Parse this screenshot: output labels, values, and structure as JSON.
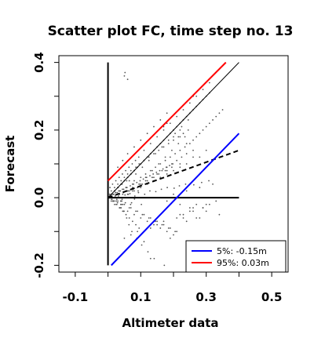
{
  "chart_data": {
    "type": "scatter",
    "title": "Scatter plot FC, time step no. 13",
    "xlabel": "Altimeter data",
    "ylabel": "Forecast",
    "xlim": [
      -0.15,
      0.55
    ],
    "ylim": [
      -0.22,
      0.42
    ],
    "x_ticks": [
      -0.1,
      0.1,
      0.3,
      0.5
    ],
    "x_tick_labels": [
      "-0.1",
      "0.1",
      "0.3",
      "0.5"
    ],
    "x_minor_ticks": [
      0.0,
      0.2,
      0.4
    ],
    "y_ticks": [
      -0.2,
      0.0,
      0.2,
      0.4
    ],
    "y_tick_labels": [
      "-0.2",
      "0.0",
      "0.2",
      "0.4"
    ],
    "y_minor_ticks": [
      -0.1,
      0.1,
      0.3
    ],
    "grid": false,
    "legend_position": "bottom-right",
    "legend": [
      {
        "label": "5%: -0.15m",
        "color": "#0000ff"
      },
      {
        "label": "95%:  0.03m",
        "color": "#ff0000"
      }
    ],
    "lines": [
      {
        "role": "x-axis",
        "x": [
          0.0,
          0.4
        ],
        "y": [
          0.0,
          0.0
        ],
        "color": "#000000",
        "style": "solid",
        "width": 2
      },
      {
        "role": "y-axis",
        "x": [
          0.0,
          0.0
        ],
        "y": [
          -0.2,
          0.4
        ],
        "color": "#000000",
        "style": "solid",
        "width": 2
      },
      {
        "role": "identity",
        "x": [
          0.0,
          0.4
        ],
        "y": [
          0.0,
          0.4
        ],
        "color": "#000000",
        "style": "solid",
        "width": 1
      },
      {
        "role": "regression",
        "x": [
          0.0,
          0.4
        ],
        "y": [
          0.0,
          0.14
        ],
        "color": "#000000",
        "style": "dashed",
        "width": 2
      },
      {
        "role": "quantile-5",
        "x": [
          0.01,
          0.4
        ],
        "y": [
          -0.2,
          0.19
        ],
        "color": "#0000ff",
        "style": "solid",
        "width": 2
      },
      {
        "role": "quantile-95",
        "x": [
          0.0,
          0.36
        ],
        "y": [
          0.05,
          0.4
        ],
        "color": "#ff0000",
        "style": "solid",
        "width": 2
      }
    ],
    "point_color": "#555555",
    "points": {
      "x": [
        0.005,
        0.01,
        0.015,
        0.02,
        0.025,
        0.03,
        0.035,
        0.04,
        0.045,
        0.05,
        0.055,
        0.06,
        0.065,
        0.07,
        0.075,
        0.08,
        0.085,
        0.09,
        0.095,
        0.1,
        0.105,
        0.11,
        0.115,
        0.12,
        0.125,
        0.13,
        0.135,
        0.14,
        0.145,
        0.15,
        0.155,
        0.16,
        0.165,
        0.17,
        0.175,
        0.18,
        0.185,
        0.19,
        0.195,
        0.2,
        0.205,
        0.21,
        0.215,
        0.22,
        0.225,
        0.23,
        0.235,
        0.24,
        0.245,
        0.25,
        0.26,
        0.27,
        0.28,
        0.29,
        0.3,
        0.31,
        0.32,
        0.33,
        0.34,
        0.35,
        0.01,
        0.02,
        0.03,
        0.04,
        0.05,
        0.06,
        0.07,
        0.08,
        0.09,
        0.1,
        0.11,
        0.12,
        0.13,
        0.14,
        0.15,
        0.16,
        0.17,
        0.18,
        0.19,
        0.2,
        0.21,
        0.22,
        0.23,
        0.24,
        0.25,
        0.26,
        0.27,
        0.28,
        0.29,
        0.3,
        0.008,
        0.018,
        0.028,
        0.038,
        0.048,
        0.058,
        0.068,
        0.078,
        0.088,
        0.098,
        0.108,
        0.118,
        0.128,
        0.138,
        0.148,
        0.158,
        0.168,
        0.178,
        0.188,
        0.198,
        0.012,
        0.022,
        0.032,
        0.042,
        0.052,
        0.062,
        0.072,
        0.082,
        0.092,
        0.102,
        0.006,
        0.014,
        0.024,
        0.034,
        0.044,
        0.054,
        0.064,
        0.074,
        0.084,
        0.094,
        0.03,
        0.045,
        0.06,
        0.08,
        0.1,
        0.12,
        0.14,
        0.16,
        0.18,
        0.2,
        0.22,
        0.24,
        0.26,
        0.28,
        0.05,
        0.07,
        0.09,
        0.11,
        0.13,
        0.15,
        0.17,
        0.19,
        0.21,
        0.23,
        0.25,
        0.27,
        0.29,
        0.31,
        0.33,
        0.04,
        0.06,
        0.08,
        0.1,
        0.12,
        0.14,
        0.16,
        0.18,
        0.2,
        0.22,
        0.24,
        0.06,
        0.1,
        0.14,
        0.18,
        0.22,
        0.26,
        0.3,
        0.015,
        0.025,
        0.035,
        0.045,
        0.055,
        0.065,
        0.075,
        0.085,
        0.095,
        0.105,
        0.115,
        0.125,
        0.135,
        0.145,
        0.155,
        0.165,
        0.175,
        0.185,
        0.195,
        0.205,
        0.005,
        0.01,
        0.015,
        0.02,
        0.025,
        0.03,
        0.035,
        0.04,
        0.045,
        0.05,
        0.055,
        0.06,
        0.065,
        0.07,
        0.075,
        0.08,
        0.085,
        0.09,
        0.095,
        0.1,
        0.055,
        0.065,
        0.075,
        0.085,
        0.095,
        0.105,
        0.115,
        0.125,
        0.135,
        0.145,
        0.155,
        0.165,
        0.175,
        0.185,
        0.195,
        0.205,
        0.215,
        0.225,
        0.235,
        0.245,
        0.035,
        0.043,
        0.052,
        0.067,
        0.081,
        0.093,
        0.112,
        0.128,
        0.146,
        0.163,
        0.181,
        0.202,
        0.218,
        0.237,
        0.262,
        0.286,
        0.308,
        0.041,
        0.048,
        0.057,
        0.064,
        0.073,
        0.088,
        0.103,
        0.122,
        0.141,
        0.172,
        0.016,
        0.022,
        0.027,
        0.033,
        0.039,
        0.047,
        0.053,
        0.061,
        0.069,
        0.077,
        0.009,
        0.013,
        0.017,
        0.021,
        0.027,
        0.031,
        0.037,
        0.043,
        0.049,
        0.057,
        0.003,
        0.007,
        0.011,
        0.016,
        0.019,
        0.023,
        0.029,
        0.033,
        0.039,
        0.044,
        0.11,
        0.13,
        0.15,
        0.17,
        0.19,
        0.21,
        0.23,
        0.25,
        0.27,
        0.29,
        0.31,
        0.16,
        0.18,
        0.2,
        0.22,
        0.24,
        0.26,
        0.28,
        0.3,
        0.32,
        0.34,
        0.02,
        0.03,
        0.04,
        0.05,
        0.06,
        0.07,
        0.08,
        0.09,
        0.1,
        0.11,
        0.12,
        0.13,
        0.14,
        0.15,
        0.16,
        0.17,
        0.18,
        0.19,
        0.2,
        0.21,
        0.22,
        0.23,
        0.24,
        0.25,
        0.26,
        0.27,
        0.28,
        0.29,
        0.3,
        0.31,
        0.05,
        0.052,
        0.06,
        0.2,
        0.22,
        0.26,
        0.18,
        0.17,
        0.13,
        0.24
      ],
      "y": [
        0.01,
        0.02,
        -0.01,
        0.03,
        0.0,
        0.04,
        0.02,
        0.05,
        0.01,
        0.06,
        0.03,
        0.07,
        0.02,
        0.08,
        0.04,
        0.05,
        0.09,
        0.03,
        0.1,
        0.06,
        0.04,
        0.11,
        0.07,
        0.05,
        0.12,
        0.08,
        0.06,
        0.13,
        0.09,
        0.07,
        0.14,
        0.1,
        0.08,
        0.15,
        0.11,
        0.09,
        0.16,
        0.12,
        0.1,
        0.17,
        0.13,
        0.11,
        0.18,
        0.14,
        0.12,
        0.19,
        0.15,
        0.13,
        0.2,
        0.16,
        0.17,
        0.18,
        0.19,
        0.2,
        0.21,
        0.22,
        0.23,
        0.24,
        0.25,
        0.26,
        -0.01,
        -0.02,
        -0.01,
        -0.03,
        -0.02,
        -0.04,
        -0.03,
        -0.05,
        -0.04,
        -0.06,
        -0.05,
        -0.07,
        -0.06,
        -0.08,
        -0.07,
        -0.09,
        -0.08,
        -0.1,
        -0.09,
        -0.11,
        -0.1,
        -0.05,
        -0.06,
        -0.07,
        -0.03,
        -0.04,
        -0.02,
        -0.06,
        -0.03,
        -0.02,
        0.005,
        0.01,
        0.015,
        0.02,
        0.025,
        0.03,
        0.035,
        0.04,
        0.045,
        0.05,
        0.055,
        0.06,
        0.065,
        0.07,
        0.075,
        0.08,
        0.085,
        0.09,
        0.095,
        0.1,
        -0.005,
        0.0,
        0.005,
        -0.01,
        0.0,
        0.01,
        -0.015,
        0.005,
        0.02,
        -0.02,
        0.03,
        0.04,
        0.05,
        0.06,
        0.07,
        0.08,
        0.09,
        0.1,
        0.11,
        0.12,
        0.09,
        0.11,
        0.13,
        0.15,
        0.17,
        0.19,
        0.21,
        0.23,
        0.25,
        0.2,
        0.18,
        0.16,
        0.14,
        0.12,
        -0.12,
        -0.11,
        -0.1,
        -0.13,
        -0.09,
        -0.08,
        -0.07,
        -0.12,
        -0.06,
        -0.05,
        -0.04,
        -0.06,
        -0.03,
        -0.02,
        -0.01,
        0.0,
        0.01,
        0.02,
        0.03,
        0.04,
        0.05,
        0.06,
        0.07,
        0.08,
        0.09,
        0.1,
        0.02,
        0.04,
        0.06,
        0.08,
        0.1,
        0.12,
        0.14,
        0.0,
        -0.01,
        0.01,
        -0.02,
        0.02,
        -0.03,
        0.03,
        -0.04,
        0.04,
        -0.05,
        0.05,
        -0.06,
        0.06,
        -0.07,
        0.07,
        -0.08,
        0.08,
        -0.09,
        0.09,
        -0.1,
        0.0,
        0.01,
        -0.01,
        0.02,
        -0.02,
        0.03,
        -0.03,
        0.04,
        -0.04,
        0.05,
        -0.05,
        0.06,
        -0.06,
        0.07,
        -0.07,
        0.08,
        -0.08,
        0.09,
        -0.09,
        0.1,
        0.03,
        0.05,
        0.02,
        0.07,
        0.04,
        0.09,
        0.06,
        0.11,
        0.08,
        0.13,
        0.1,
        0.15,
        0.12,
        0.17,
        0.14,
        0.19,
        0.16,
        0.21,
        0.18,
        0.23,
        0.0,
        -0.005,
        0.008,
        0.012,
        -0.004,
        0.015,
        0.01,
        0.02,
        0.018,
        0.025,
        0.03,
        0.028,
        0.035,
        0.04,
        0.038,
        0.045,
        0.05,
        -0.02,
        -0.04,
        -0.06,
        -0.08,
        -0.1,
        -0.12,
        -0.14,
        -0.16,
        -0.18,
        -0.2,
        0.0,
        0.005,
        -0.005,
        0.01,
        -0.01,
        0.015,
        -0.015,
        0.02,
        -0.02,
        0.025,
        0.0,
        0.01,
        -0.01,
        0.02,
        -0.02,
        0.03,
        -0.03,
        0.04,
        -0.04,
        0.05,
        0.0,
        0.005,
        -0.005,
        0.01,
        -0.01,
        0.015,
        -0.015,
        0.02,
        -0.02,
        0.025,
        0.14,
        0.16,
        0.18,
        0.2,
        0.22,
        0.24,
        0.26,
        0.28,
        0.3,
        0.32,
        0.34,
        0.0,
        -0.01,
        0.01,
        -0.02,
        0.02,
        -0.03,
        0.03,
        -0.04,
        0.04,
        -0.05,
        0.02,
        0.03,
        0.04,
        0.05,
        0.06,
        0.07,
        0.08,
        0.09,
        0.1,
        0.11,
        0.12,
        0.13,
        0.14,
        0.15,
        0.16,
        0.17,
        0.18,
        0.19,
        0.2,
        0.21,
        0.22,
        0.23,
        0.24,
        0.25,
        0.26,
        0.27,
        0.28,
        0.29,
        0.3,
        0.31,
        0.36,
        0.37,
        0.35,
        0.18,
        0.2,
        0.3,
        0.22,
        0.21,
        -0.18,
        -0.15
      ]
    }
  }
}
